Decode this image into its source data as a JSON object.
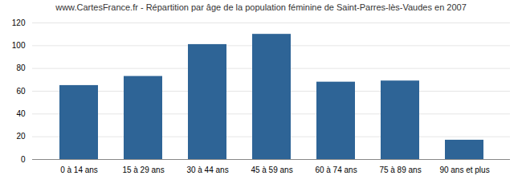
{
  "chart_data": {
    "type": "bar",
    "title": "www.CartesFrance.fr - Répartition par âge de la population féminine de Saint-Parres-lès-Vaudes en 2007",
    "categories": [
      "0 à 14 ans",
      "15 à 29 ans",
      "30 à 44 ans",
      "45 à 59 ans",
      "60 à 74 ans",
      "75 à 89 ans",
      "90 ans et plus"
    ],
    "values": [
      65,
      73,
      101,
      110,
      68,
      69,
      17
    ],
    "color": "#2e6496",
    "ylim": [
      0,
      120
    ],
    "yticks": [
      0,
      20,
      40,
      60,
      80,
      100,
      120
    ],
    "grid": true
  }
}
